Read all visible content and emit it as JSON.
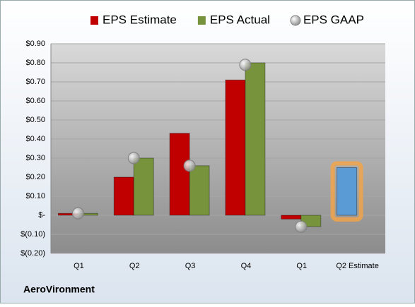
{
  "chart_data": {
    "type": "bar",
    "categories": [
      "Q1",
      "Q2",
      "Q3",
      "Q4",
      "Q1",
      "Q2 Estimate"
    ],
    "series": [
      {
        "name": "EPS Estimate",
        "color": "#c00000",
        "values": [
          0.01,
          0.2,
          0.43,
          0.71,
          -0.02,
          0.25
        ],
        "colors": [
          "#c00000",
          "#c00000",
          "#c00000",
          "#c00000",
          "#c00000",
          "#5b9bd5"
        ]
      },
      {
        "name": "EPS Actual",
        "color": "#77933c",
        "values": [
          0.01,
          0.3,
          0.26,
          0.8,
          -0.06,
          null
        ]
      },
      {
        "name": "EPS GAAP",
        "color": "#a6a6a6",
        "type": "scatter",
        "values": [
          0.01,
          0.3,
          0.26,
          0.79,
          -0.06,
          null
        ]
      }
    ],
    "ylim": [
      -0.2,
      0.9
    ],
    "yticks": [
      {
        "value": 0.9,
        "label": "$0.90"
      },
      {
        "value": 0.8,
        "label": "$0.80"
      },
      {
        "value": 0.7,
        "label": "$0.70"
      },
      {
        "value": 0.6,
        "label": "$0.60"
      },
      {
        "value": 0.5,
        "label": "$0.50"
      },
      {
        "value": 0.4,
        "label": "$0.40"
      },
      {
        "value": 0.3,
        "label": "$0.30"
      },
      {
        "value": 0.2,
        "label": "$0.20"
      },
      {
        "value": 0.1,
        "label": "$0.10"
      },
      {
        "value": 0,
        "label": "$-"
      },
      {
        "value": -0.1,
        "label": "$(0.10)"
      },
      {
        "value": -0.2,
        "label": "$(0.20)"
      }
    ],
    "grid": true,
    "legend": "top",
    "footer": "AeroVironment"
  }
}
